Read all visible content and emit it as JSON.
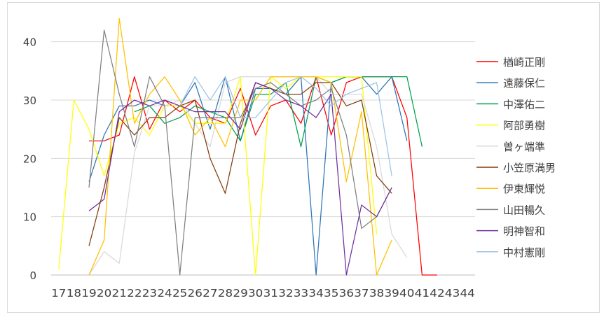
{
  "chart_data": {
    "type": "line",
    "title": "",
    "xlabel": "",
    "ylabel": "",
    "ylim": [
      0,
      45
    ],
    "yticks": [
      0,
      10,
      20,
      30,
      40
    ],
    "grid": "horizontal",
    "legend": "right",
    "x": [
      17,
      18,
      19,
      20,
      21,
      22,
      23,
      24,
      25,
      26,
      27,
      28,
      29,
      30,
      31,
      32,
      33,
      34,
      35,
      36,
      37,
      38,
      39,
      40,
      41,
      42,
      43,
      44
    ],
    "series": [
      {
        "name": "楢崎正剛",
        "color": "#ff0000",
        "values": [
          null,
          null,
          23,
          23,
          24,
          34,
          25,
          30,
          28,
          30,
          27,
          26,
          32,
          24,
          29,
          30,
          26,
          34,
          24,
          33,
          34,
          34,
          34,
          27,
          0,
          0,
          null,
          null
        ]
      },
      {
        "name": "遠藤保仁",
        "color": "#2e75b6",
        "values": [
          null,
          null,
          16,
          24,
          29,
          29,
          30,
          29,
          29,
          33,
          25,
          34,
          23,
          32,
          32,
          31,
          34,
          0,
          33,
          34,
          34,
          31,
          34,
          23,
          null,
          null,
          null,
          null
        ]
      },
      {
        "name": "中澤佑二",
        "color": "#00a050",
        "values": [
          null,
          null,
          null,
          null,
          null,
          28,
          29,
          26,
          27,
          29,
          28,
          27,
          23,
          31,
          31,
          33,
          22,
          34,
          33,
          34,
          34,
          34,
          34,
          34,
          22,
          null,
          null,
          null
        ]
      },
      {
        "name": "阿部勇樹",
        "color": "#ffff00",
        "values": [
          1,
          30,
          25,
          17,
          26,
          27,
          24,
          29,
          29,
          26,
          26,
          26,
          34,
          0,
          34,
          32,
          34,
          34,
          34,
          34,
          34,
          7,
          null,
          null,
          null,
          null,
          null,
          null
        ]
      },
      {
        "name": "曽ヶ端準",
        "color": "#d9d9d9",
        "values": [
          null,
          null,
          0,
          4,
          2,
          21,
          29,
          29,
          30,
          26,
          22,
          33,
          34,
          34,
          34,
          34,
          34,
          34,
          31,
          31,
          31,
          22,
          7,
          3,
          null,
          null,
          null,
          null
        ]
      },
      {
        "name": "小笠原満男",
        "color": "#843c0c",
        "values": [
          null,
          null,
          5,
          15,
          27,
          24,
          27,
          27,
          29,
          30,
          20,
          14,
          26,
          33,
          32,
          31,
          31,
          33,
          33,
          29,
          30,
          17,
          14,
          null,
          null,
          null,
          null,
          null
        ]
      },
      {
        "name": "伊東輝悦",
        "color": "#ffc000",
        "values": [
          null,
          null,
          0,
          6,
          44,
          26,
          31,
          34,
          30,
          24,
          27,
          22,
          30,
          30,
          34,
          34,
          34,
          34,
          33,
          16,
          28,
          0,
          6,
          null,
          null,
          null,
          null,
          null
        ]
      },
      {
        "name": "山田暢久",
        "color": "#808080",
        "values": [
          null,
          null,
          15,
          42,
          31,
          22,
          34,
          29,
          0,
          27,
          27,
          27,
          27,
          32,
          33,
          31,
          29,
          30,
          32,
          24,
          8,
          10,
          15,
          null,
          null,
          null,
          null,
          null
        ]
      },
      {
        "name": "明神智和",
        "color": "#7030a0",
        "values": [
          null,
          null,
          11,
          13,
          28,
          30,
          29,
          30,
          29,
          28,
          28,
          28,
          25,
          33,
          32,
          30,
          29,
          27,
          31,
          0,
          12,
          10,
          15,
          null,
          null,
          null,
          null,
          null
        ]
      },
      {
        "name": "中村憲剛",
        "color": "#9dc3e6",
        "values": [
          null,
          null,
          null,
          null,
          null,
          null,
          null,
          null,
          29,
          34,
          30,
          34,
          27,
          27,
          30,
          33,
          34,
          32,
          29,
          31,
          32,
          33,
          17,
          null,
          null,
          null,
          null,
          null
        ]
      }
    ]
  }
}
